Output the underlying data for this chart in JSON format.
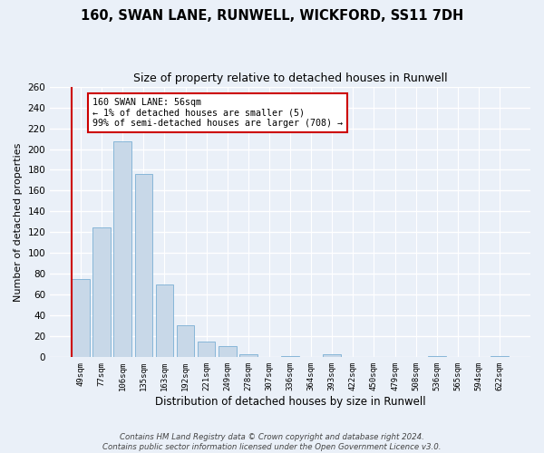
{
  "title": "160, SWAN LANE, RUNWELL, WICKFORD, SS11 7DH",
  "subtitle": "Size of property relative to detached houses in Runwell",
  "xlabel": "Distribution of detached houses by size in Runwell",
  "ylabel": "Number of detached properties",
  "bar_color": "#c8d8e8",
  "bar_edge_color": "#7aafd4",
  "categories": [
    "49sqm",
    "77sqm",
    "106sqm",
    "135sqm",
    "163sqm",
    "192sqm",
    "221sqm",
    "249sqm",
    "278sqm",
    "307sqm",
    "336sqm",
    "364sqm",
    "393sqm",
    "422sqm",
    "450sqm",
    "479sqm",
    "508sqm",
    "536sqm",
    "565sqm",
    "594sqm",
    "622sqm"
  ],
  "values": [
    75,
    125,
    207,
    176,
    70,
    31,
    15,
    11,
    3,
    0,
    1,
    0,
    3,
    0,
    0,
    0,
    0,
    1,
    0,
    0,
    1
  ],
  "ylim": [
    0,
    260
  ],
  "yticks": [
    0,
    20,
    40,
    60,
    80,
    100,
    120,
    140,
    160,
    180,
    200,
    220,
    240,
    260
  ],
  "annotation_text": "160 SWAN LANE: 56sqm\n← 1% of detached houses are smaller (5)\n99% of semi-detached houses are larger (708) →",
  "box_color": "#ffffff",
  "box_edge_color": "#cc0000",
  "footer": "Contains HM Land Registry data © Crown copyright and database right 2024.\nContains public sector information licensed under the Open Government Licence v3.0.",
  "background_color": "#eaf0f8",
  "plot_bg_color": "#eaf0f8",
  "grid_color": "#ffffff",
  "highlight_color": "#cc0000",
  "title_fontsize": 10.5,
  "subtitle_fontsize": 9,
  "xlabel_fontsize": 8.5,
  "ylabel_fontsize": 8
}
